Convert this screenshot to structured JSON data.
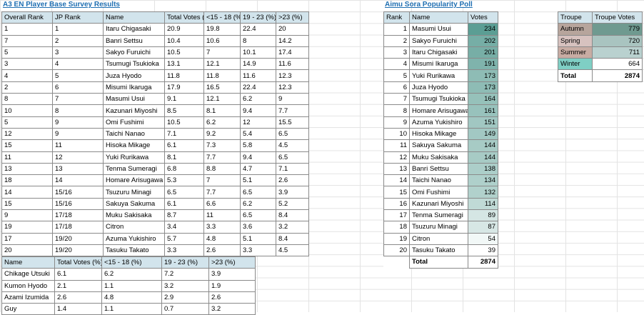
{
  "survey": {
    "title": "A3 EN Player Base Survey Results",
    "headers": [
      "Overall Rank",
      "JP Rank",
      "Name",
      "Total Votes (%)",
      "<15 - 18 (%)",
      "19 - 23 (%)",
      ">23 (%)"
    ],
    "rows": [
      [
        "1",
        "1",
        "Itaru Chigasaki",
        "20.9",
        "19.8",
        "22.4",
        "20"
      ],
      [
        "7",
        "2",
        "Banri Settsu",
        "10.4",
        "10.6",
        "8",
        "14.2"
      ],
      [
        "5",
        "3",
        "Sakyo Furuichi",
        "10.5",
        "7",
        "10.1",
        "17.4"
      ],
      [
        "3",
        "4",
        "Tsumugi Tsukioka",
        "13.1",
        "12.1",
        "14.9",
        "11.6"
      ],
      [
        "4",
        "5",
        "Juza Hyodo",
        "11.8",
        "11.8",
        "11.6",
        "12.3"
      ],
      [
        "2",
        "6",
        "Misumi Ikaruga",
        "17.9",
        "16.5",
        "22.4",
        "12.3"
      ],
      [
        "8",
        "7",
        "Masumi Usui",
        "9.1",
        "12.1",
        "6.2",
        "9"
      ],
      [
        "10",
        "8",
        "Kazunari Miyoshi",
        "8.5",
        "8.1",
        "9.4",
        "7.7"
      ],
      [
        "5",
        "9",
        "Omi Fushimi",
        "10.5",
        "6.2",
        "12",
        "15.5"
      ],
      [
        "12",
        "9",
        "Taichi Nanao",
        "7.1",
        "9.2",
        "5.4",
        "6.5"
      ],
      [
        "15",
        "11",
        "Hisoka Mikage",
        "6.1",
        "7.3",
        "5.8",
        "4.5"
      ],
      [
        "11",
        "12",
        "Yuki Rurikawa",
        "8.1",
        "7.7",
        "9.4",
        "6.5"
      ],
      [
        "13",
        "13",
        "Tenma Sumeragi",
        "6.8",
        "8.8",
        "4.7",
        "7.1"
      ],
      [
        "18",
        "14",
        "Homare Arisugawa",
        "5.3",
        "7",
        "5.1",
        "2.6"
      ],
      [
        "14",
        "15/16",
        "Tsuzuru Minagi",
        "6.5",
        "7.7",
        "6.5",
        "3.9"
      ],
      [
        "15",
        "15/16",
        "Sakuya Sakuma",
        "6.1",
        "6.6",
        "6.2",
        "5.2"
      ],
      [
        "9",
        "17/18",
        "Muku Sakisaka",
        "8.7",
        "11",
        "6.5",
        "8.4"
      ],
      [
        "19",
        "17/18",
        "Citron",
        "3.4",
        "3.3",
        "3.6",
        "3.2"
      ],
      [
        "17",
        "19/20",
        "Azuma Yukishiro",
        "5.7",
        "4.8",
        "5.1",
        "8.4"
      ],
      [
        "20",
        "19/20",
        "Tasuku Takato",
        "3.3",
        "2.6",
        "3.3",
        "4.5"
      ]
    ]
  },
  "extra": {
    "headers": [
      "Name",
      "Total Votes (%)",
      "<15 - 18 (%)",
      "19 - 23 (%)",
      ">23 (%)"
    ],
    "rows": [
      [
        "Chikage Utsuki",
        "6.1",
        "6.2",
        "7.2",
        "3.9"
      ],
      [
        "Kumon Hyodo",
        "2.1",
        "1.1",
        "3.2",
        "1.9"
      ],
      [
        "Azami Izumida",
        "2.6",
        "4.8",
        "2.9",
        "2.6"
      ],
      [
        "Guy",
        "1.4",
        "1.1",
        "0.7",
        "3.2"
      ]
    ]
  },
  "poll": {
    "title": "Aimu Sora Popularity Poll",
    "headers": [
      "Rank",
      "Name",
      "Votes"
    ],
    "rows": [
      [
        "1",
        "Masumi Usui",
        "234"
      ],
      [
        "2",
        "Sakyo Furuichi",
        "202"
      ],
      [
        "3",
        "Itaru Chigasaki",
        "201"
      ],
      [
        "4",
        "Misumi Ikaruga",
        "191"
      ],
      [
        "5",
        "Yuki Rurikawa",
        "173"
      ],
      [
        "6",
        "Juza Hyodo",
        "173"
      ],
      [
        "7",
        "Tsumugi Tsukioka",
        "164"
      ],
      [
        "8",
        "Homare Arisugawa",
        "161"
      ],
      [
        "9",
        "Azuma Yukishiro",
        "151"
      ],
      [
        "10",
        "Hisoka Mikage",
        "149"
      ],
      [
        "11",
        "Sakuya Sakuma",
        "144"
      ],
      [
        "12",
        "Muku Sakisaka",
        "144"
      ],
      [
        "13",
        "Banri Settsu",
        "138"
      ],
      [
        "14",
        "Taichi Nanao",
        "134"
      ],
      [
        "15",
        "Omi Fushimi",
        "132"
      ],
      [
        "16",
        "Kazunari Miyoshi",
        "114"
      ],
      [
        "17",
        "Tenma Sumeragi",
        "89"
      ],
      [
        "18",
        "Tsuzuru Minagi",
        "87"
      ],
      [
        "19",
        "Citron",
        "54"
      ],
      [
        "20",
        "Tasuku Takato",
        "39"
      ]
    ],
    "total_label": "Total",
    "total_value": "2874",
    "scale_colors": {
      "low": "#ffffff",
      "high": "#5b9e94"
    }
  },
  "troupe": {
    "headers": [
      "Troupe",
      "Troupe Votes"
    ],
    "rows": [
      {
        "name": "Autumn",
        "votes": "779",
        "color": "#b7a59c",
        "bar": "#6f9a90"
      },
      {
        "name": "Spring",
        "votes": "720",
        "color": "#d7c2bf",
        "bar": "#a9c4c0"
      },
      {
        "name": "Summer",
        "votes": "711",
        "color": "#c8aca3",
        "bar": "#b9d1cf"
      },
      {
        "name": "Winter",
        "votes": "664",
        "color": "#7fcfc4",
        "bar": "#ffffff"
      }
    ],
    "total_label": "Total",
    "total_value": "2874"
  }
}
